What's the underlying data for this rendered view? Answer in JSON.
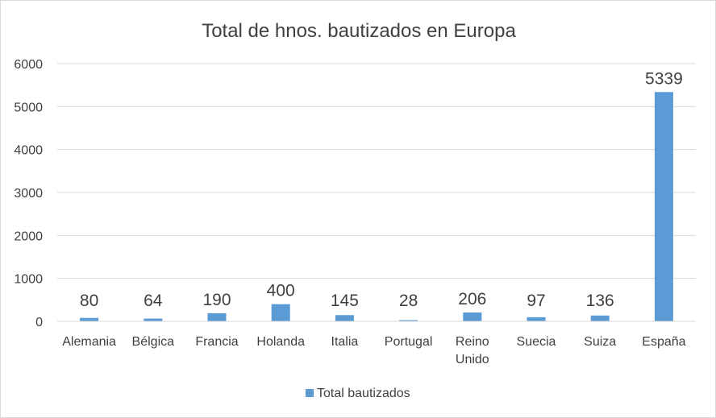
{
  "chart_data": {
    "type": "bar",
    "title": "Total de hnos. bautizados en Europa",
    "categories": [
      "Alemania",
      "Bélgica",
      "Francia",
      "Holanda",
      "Italia",
      "Portugal",
      "Reino Unido",
      "Suecia",
      "Suiza",
      "España"
    ],
    "series": [
      {
        "name": "Total bautizados",
        "values": [
          80,
          64,
          190,
          400,
          145,
          28,
          206,
          97,
          136,
          5339
        ],
        "color": "#5b9bd5"
      }
    ],
    "ylim": [
      0,
      6000
    ],
    "yticks": [
      0,
      1000,
      2000,
      3000,
      4000,
      5000,
      6000
    ],
    "grid": true,
    "data_labels": true,
    "legend_position": "bottom"
  }
}
